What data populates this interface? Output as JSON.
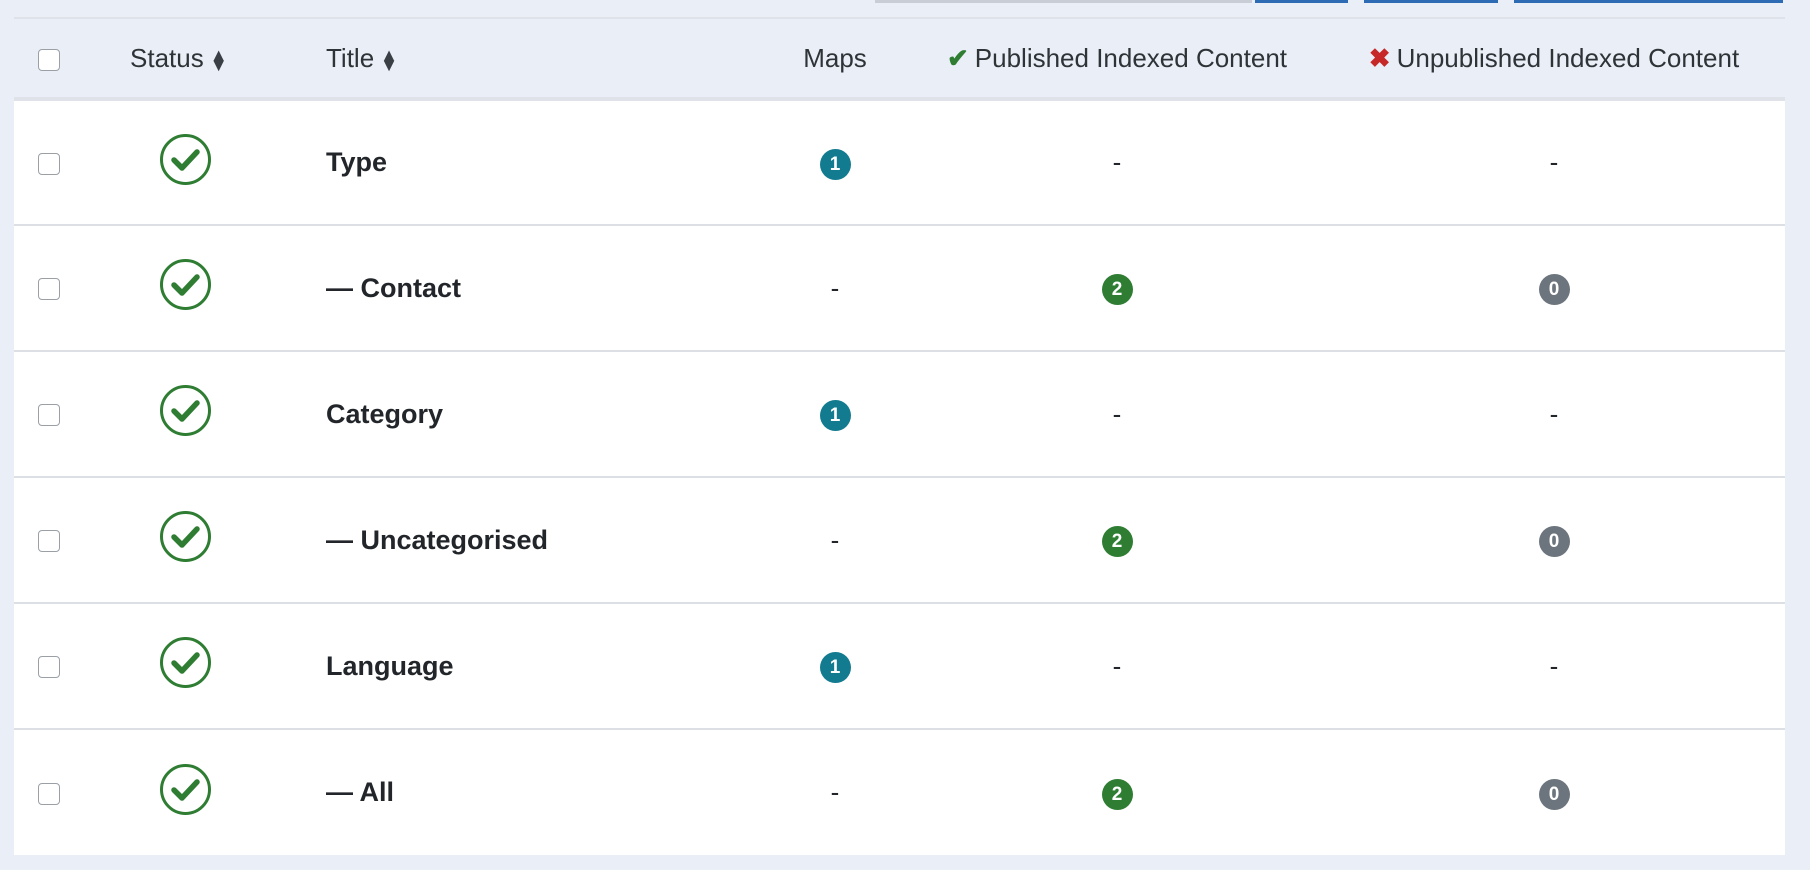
{
  "header": {
    "status": "Status",
    "title": "Title",
    "maps": "Maps",
    "published": "Published Indexed Content",
    "unpublished": "Unpublished Indexed Content",
    "sort_icon": "sort-icon",
    "published_icon": "check-icon",
    "unpublished_icon": "x-icon"
  },
  "colors": {
    "published": "#2e7d32",
    "unpublished": "#c62828",
    "maps_badge": "#127b8f",
    "zero_badge": "#6c757d"
  },
  "rows": [
    {
      "status": "published",
      "title": "Type",
      "maps": "1",
      "published": "-",
      "unpublished": "-"
    },
    {
      "status": "published",
      "title": "— Contact",
      "maps": "-",
      "published": "2",
      "unpublished": "0"
    },
    {
      "status": "published",
      "title": "Category",
      "maps": "1",
      "published": "-",
      "unpublished": "-"
    },
    {
      "status": "published",
      "title": "— Uncategorised",
      "maps": "-",
      "published": "2",
      "unpublished": "0"
    },
    {
      "status": "published",
      "title": "Language",
      "maps": "1",
      "published": "-",
      "unpublished": "-"
    },
    {
      "status": "published",
      "title": "— All",
      "maps": "-",
      "published": "2",
      "unpublished": "0"
    }
  ]
}
